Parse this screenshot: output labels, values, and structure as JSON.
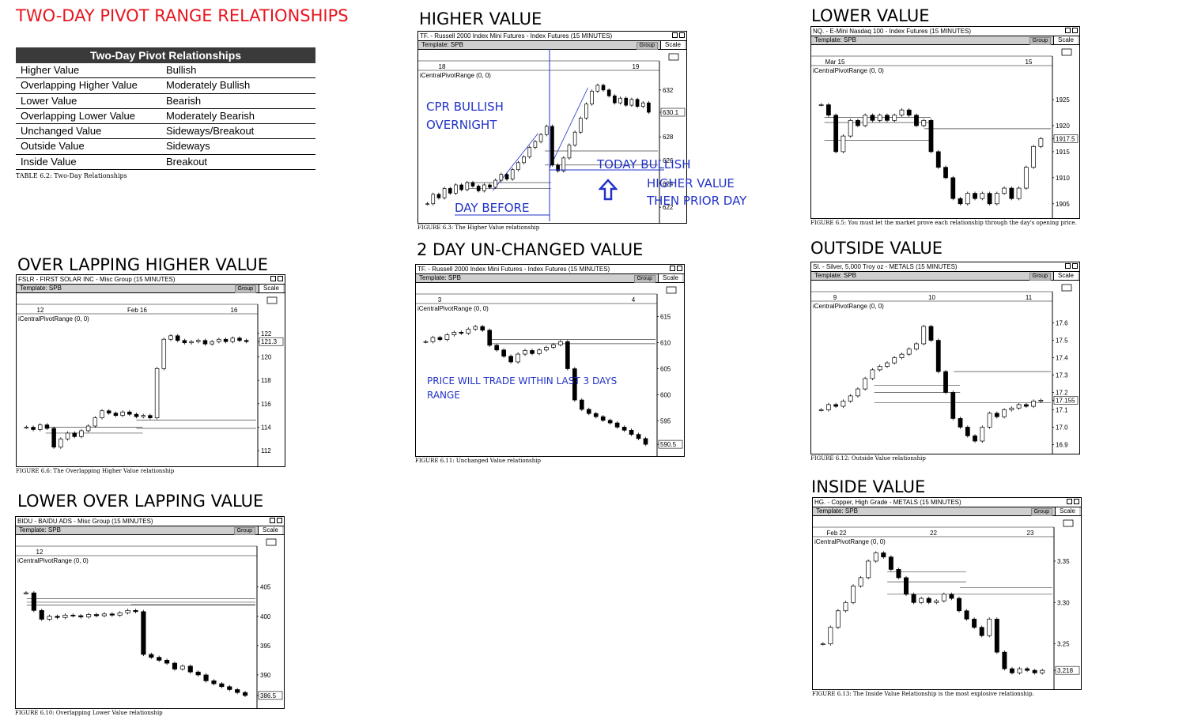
{
  "title": "TWO-DAY PIVOT RANGE RELATIONSHIPS",
  "table": {
    "header": "Two-Day Pivot Relationships",
    "rows": [
      [
        "Higher Value",
        "Bullish"
      ],
      [
        "Overlapping Higher Value",
        "Moderately Bullish"
      ],
      [
        "Lower Value",
        "Bearish"
      ],
      [
        "Overlapping Lower Value",
        "Moderately Bearish"
      ],
      [
        "Unchanged Value",
        "Sideways/Breakout"
      ],
      [
        "Outside Value",
        "Sideways"
      ],
      [
        "Inside Value",
        "Breakout"
      ]
    ],
    "caption": "TABLE 6.2: Two-Day Relationships"
  },
  "common": {
    "template": "Template: SPB",
    "group": "Group",
    "scale": "Scale",
    "indicator": "iCentralPivotRange (0, 0)"
  },
  "colors": {
    "title": "#e8141e",
    "annotation": "#2233c8",
    "bars": "#000000"
  },
  "annotations": {
    "cpr_bullish": "CPR BULLISH",
    "overnight": "OVERNIGHT",
    "day_before": "DAY BEFORE",
    "today_bullish": "TODAY BULLISH",
    "higher_value": "HIGHER VALUE",
    "then_prior_day": "THEN PRIOR DAY",
    "within_range_1": "PRICE WILL TRADE WITHIN LAST 3 DAYS",
    "within_range_2": "RANGE",
    "arrow": "up-arrow-icon"
  },
  "chart_data": [
    {
      "type": "candlestick",
      "id": "higher",
      "heading": "HIGHER VALUE",
      "window_title": "TF.  - Russell 2000 Index Mini Futures - Index Futures (15 MINUTES)",
      "x_ticks": [
        "18",
        "19"
      ],
      "y_ticks": [
        "632",
        "630.1",
        "628",
        "626",
        "624",
        "622"
      ],
      "ylim": [
        621,
        633
      ],
      "last": "630.1",
      "caption": "FIGURE 6.3: The Higher Value relationship",
      "values": [
        622.3,
        623.1,
        622.8,
        623.6,
        623.2,
        623.9,
        623.5,
        624.1,
        623.8,
        623.4,
        623.9,
        623.7,
        624.3,
        624.8,
        624.4,
        625.2,
        625.8,
        626.3,
        627.1,
        627.6,
        628.2,
        628.9,
        625.6,
        625.1,
        626.2,
        627.3,
        628.4,
        629.6,
        630.8,
        631.9,
        632.4,
        632.0,
        631.5,
        630.9,
        631.3,
        630.7,
        631.2,
        630.6,
        630.9,
        630.1
      ],
      "pivots": [
        {
          "v": 624.1,
          "from": 0.18,
          "to": 0.53
        },
        {
          "v": 623.6,
          "from": 0.18,
          "to": 0.53
        },
        {
          "v": 626.8,
          "from": 0.53,
          "to": 1
        },
        {
          "v": 625.6,
          "from": 0.53,
          "to": 1
        }
      ],
      "trend": [
        [
          0.3,
          623.4
        ],
        [
          0.5,
          628.3
        ]
      ],
      "trend2": [
        [
          0.55,
          625.3
        ],
        [
          0.72,
          632.2
        ]
      ]
    },
    {
      "type": "candlestick",
      "id": "lower",
      "heading": "LOWER VALUE",
      "window_title": "NQ.  - E-Mini Nasdaq 100 - Index Futures (15 MINUTES)",
      "x_ticks": [
        "Mar 15",
        "15"
      ],
      "y_ticks": [
        "1925",
        "1920",
        "1917.5",
        "1915",
        "1910",
        "1905"
      ],
      "ylim": [
        1903,
        1930
      ],
      "last": "1917.5",
      "caption": "FIGURE 6.5: You must let the market prove each relationship through the day's opening price.",
      "values": [
        1924,
        1922,
        1915,
        1918,
        1921,
        1920,
        1922,
        1921,
        1922,
        1921,
        1922,
        1923,
        1922,
        1920,
        1921,
        1915,
        1912,
        1910,
        1906,
        1905,
        1907,
        1906,
        1907,
        1905,
        1907,
        1908,
        1906,
        1908,
        1912,
        1916,
        1917.5
      ],
      "pivots": [
        {
          "v": 1921.6,
          "from": 0.03,
          "to": 0.47
        },
        {
          "v": 1920.6,
          "from": 0.03,
          "to": 0.47
        },
        {
          "v": 1919.4,
          "from": 0.47,
          "to": 1
        },
        {
          "v": 1917.2,
          "from": 0.03,
          "to": 0.47
        }
      ]
    },
    {
      "type": "candlestick",
      "id": "overlap-higher",
      "heading": "OVER LAPPING HIGHER VALUE",
      "window_title": "FSLR - FIRST SOLAR INC - Misc Group (15 MINUTES)",
      "x_ticks": [
        "12",
        "Feb 16",
        "16"
      ],
      "y_ticks": [
        "122",
        "121.3",
        "120",
        "118",
        "116",
        "114",
        "112"
      ],
      "ylim": [
        111,
        123
      ],
      "last": "121.3",
      "caption": "FIGURE 6.6: The Overlapping Higher Value relationship",
      "values": [
        114.0,
        113.8,
        114.2,
        113.9,
        112.3,
        113.0,
        113.5,
        113.2,
        113.7,
        114.1,
        114.8,
        115.4,
        115.2,
        115.0,
        115.3,
        115.1,
        114.9,
        115.0,
        114.8,
        119.0,
        121.5,
        121.8,
        121.4,
        121.2,
        121.3,
        121.4,
        121.1,
        121.3,
        121.5,
        121.3,
        121.6,
        121.4,
        121.3
      ],
      "pivots": [
        {
          "v": 114.0,
          "from": 0.1,
          "to": 0.5
        },
        {
          "v": 113.5,
          "from": 0.1,
          "to": 0.5
        },
        {
          "v": 114.6,
          "from": 0.5,
          "to": 1
        },
        {
          "v": 113.9,
          "from": 0.5,
          "to": 1
        }
      ]
    },
    {
      "type": "candlestick",
      "id": "unchanged",
      "heading": "2 DAY UN-CHANGED VALUE",
      "window_title": "TF.  - Russell 2000 Index Mini Futures - Index Futures (15 MINUTES)",
      "x_ticks": [
        "3",
        "4"
      ],
      "y_ticks": [
        "615",
        "610",
        "605",
        "600",
        "595",
        "590.5"
      ],
      "ylim": [
        589,
        616
      ],
      "last": "590.5",
      "caption": "FIGURE 6.11: Unchanged Value relationship",
      "values": [
        610.2,
        611.0,
        610.6,
        611.5,
        612.0,
        611.8,
        612.6,
        613.1,
        612.4,
        609.5,
        608.6,
        607.4,
        606.3,
        607.8,
        608.5,
        607.9,
        608.6,
        609.1,
        609.6,
        610.2,
        605.0,
        599.0,
        597.2,
        596.4,
        595.8,
        595.1,
        594.6,
        593.8,
        593.2,
        592.4,
        591.6,
        590.5
      ],
      "pivots": [
        {
          "v": 610.6,
          "from": 0.3,
          "to": 1
        },
        {
          "v": 609.8,
          "from": 0.3,
          "to": 1
        }
      ]
    },
    {
      "type": "candlestick",
      "id": "outside",
      "heading": "OUTSIDE VALUE",
      "window_title": "SI.  - Silver, 5,000 Troy oz - METALS (15 MINUTES)",
      "x_ticks": [
        "9",
        "10",
        "11"
      ],
      "y_ticks": [
        "17.6",
        "17.5",
        "17.4",
        "17.3",
        "17.2",
        "17.155",
        "17.1",
        "17.0",
        "16.9"
      ],
      "ylim": [
        16.87,
        17.68
      ],
      "last": "17.155",
      "caption": "FIGURE 6.12: Outside Value relationship",
      "values": [
        17.1,
        17.13,
        17.12,
        17.15,
        17.18,
        17.22,
        17.28,
        17.33,
        17.35,
        17.37,
        17.4,
        17.42,
        17.45,
        17.48,
        17.58,
        17.5,
        17.32,
        17.2,
        17.05,
        17.0,
        16.95,
        16.92,
        17.0,
        17.08,
        17.06,
        17.1,
        17.11,
        17.13,
        17.12,
        17.15,
        17.155
      ],
      "pivots": [
        {
          "v": 17.32,
          "from": 0.6,
          "to": 1
        },
        {
          "v": 17.24,
          "from": 0.25,
          "to": 0.6
        },
        {
          "v": 17.2,
          "from": 0.25,
          "to": 0.6
        },
        {
          "v": 17.14,
          "from": 0.25,
          "to": 1
        }
      ]
    },
    {
      "type": "candlestick",
      "id": "overlap-lower",
      "heading": "LOWER  OVER LAPPING  VALUE",
      "window_title": "BIDU - BAIDU ADS - Misc Group (15 MINUTES)",
      "x_ticks": [
        "12"
      ],
      "y_ticks": [
        "405",
        "400",
        "395",
        "390",
        "386.5"
      ],
      "ylim": [
        385,
        409
      ],
      "last": "386.5",
      "caption": "FIGURE 6.10: Overlapping Lower Value relationship",
      "values": [
        404,
        401,
        399.5,
        400,
        399.8,
        400.2,
        400.1,
        399.9,
        400.3,
        400.1,
        400.4,
        400.2,
        400.6,
        401.0,
        400.8,
        393.5,
        393.0,
        392.5,
        392.0,
        391.0,
        391.5,
        390.5,
        390.0,
        389.0,
        388.5,
        388.0,
        387.5,
        387.0,
        386.5
      ],
      "pivots": [
        {
          "v": 403.0,
          "from": 0.02,
          "to": 1
        },
        {
          "v": 402.4,
          "from": 0.02,
          "to": 1
        },
        {
          "v": 401.9,
          "from": 0.02,
          "to": 1
        },
        {
          "v": 402.0,
          "from": 0.48,
          "to": 1
        }
      ]
    },
    {
      "type": "candlestick",
      "id": "inside",
      "heading": "INSIDE VALUE",
      "window_title": "HG.  - Copper, High Grade - METALS (15 MINUTES)",
      "x_ticks": [
        "Feb 22",
        "22",
        "23"
      ],
      "y_ticks": [
        "3.35",
        "3.30",
        "3.25",
        "3.218"
      ],
      "ylim": [
        3.2,
        3.37
      ],
      "last": "3.218",
      "caption": "FIGURE 6.13: The Inside Value Relationship is the most explosive relationship.",
      "values": [
        3.25,
        3.27,
        3.29,
        3.3,
        3.32,
        3.33,
        3.35,
        3.36,
        3.355,
        3.34,
        3.33,
        3.31,
        3.3,
        3.305,
        3.3,
        3.302,
        3.31,
        3.305,
        3.29,
        3.28,
        3.27,
        3.26,
        3.28,
        3.24,
        3.22,
        3.215,
        3.22,
        3.218,
        3.215,
        3.218
      ],
      "pivots": [
        {
          "v": 3.337,
          "from": 0.3,
          "to": 0.62
        },
        {
          "v": 3.325,
          "from": 0.3,
          "to": 0.62
        },
        {
          "v": 3.31,
          "from": 0.3,
          "to": 1
        },
        {
          "v": 3.318,
          "from": 0.62,
          "to": 1
        }
      ]
    }
  ]
}
